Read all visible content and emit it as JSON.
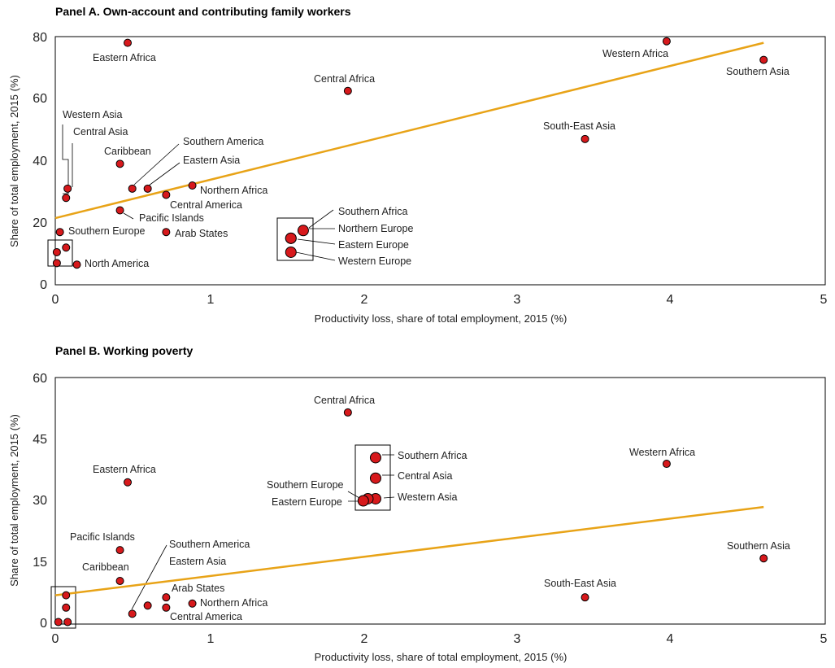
{
  "chart_data": [
    {
      "type": "scatter",
      "title": "Panel A.  Own-account and contributing family workers",
      "xlabel": "Productivity loss, share of total employment, 2015 (%)",
      "ylabel": "Share of total employment, 2015 (%)",
      "xlim": [
        0,
        5
      ],
      "ylim": [
        0,
        80
      ],
      "xticks": [
        0,
        1,
        2,
        3,
        4,
        5
      ],
      "yticks": [
        0,
        20,
        40,
        60,
        80
      ],
      "trend_line": {
        "x": [
          0,
          4.6
        ],
        "y": [
          21.5,
          78.0
        ],
        "color": "#E8A317"
      },
      "points": [
        {
          "label": "Eastern Africa",
          "x": 0.47,
          "y": 78.0
        },
        {
          "label": "Western Africa",
          "x": 3.97,
          "y": 78.5
        },
        {
          "label": "Southern Asia",
          "x": 4.6,
          "y": 72.5
        },
        {
          "label": "Central Africa",
          "x": 1.9,
          "y": 62.5
        },
        {
          "label": "South-East Asia",
          "x": 3.44,
          "y": 47.0
        },
        {
          "label": "Western Asia",
          "x": 0.08,
          "y": 31.0
        },
        {
          "label": "Central Asia",
          "x": 0.07,
          "y": 28.0
        },
        {
          "label": "Caribbean",
          "x": 0.42,
          "y": 39.0
        },
        {
          "label": "Southern America",
          "x": 0.5,
          "y": 31.0
        },
        {
          "label": "Eastern Asia",
          "x": 0.6,
          "y": 31.0
        },
        {
          "label": "Northern Africa",
          "x": 0.89,
          "y": 32.0
        },
        {
          "label": "Central America",
          "x": 0.72,
          "y": 29.0
        },
        {
          "label": "Pacific Islands",
          "x": 0.42,
          "y": 24.0
        },
        {
          "label": "Arab States",
          "x": 0.72,
          "y": 17.0
        },
        {
          "label": "Southern Europe",
          "x": 0.03,
          "y": 17.0
        },
        {
          "label": "North America",
          "x": 0.14,
          "y": 6.5
        },
        {
          "label": "",
          "x": 0.07,
          "y": 12.0
        },
        {
          "label": "",
          "x": 0.01,
          "y": 10.5
        },
        {
          "label": "",
          "x": 0.01,
          "y": 7.0
        },
        {
          "label": "Southern Africa",
          "x": 1.61,
          "y": 17.5
        },
        {
          "label": "Northern Europe",
          "x": 1.53,
          "y": 15.0
        },
        {
          "label": "Eastern Europe",
          "x": 1.53,
          "y": 15.0
        },
        {
          "label": "Western Europe",
          "x": 1.53,
          "y": 10.5
        }
      ]
    },
    {
      "type": "scatter",
      "title": "Panel B.  Working poverty",
      "xlabel": "Productivity loss, share of total employment, 2015 (%)",
      "ylabel": "Share of total employment, 2015 (%)",
      "xlim": [
        0,
        5
      ],
      "ylim": [
        0,
        60
      ],
      "xticks": [
        0,
        1,
        2,
        3,
        4,
        5
      ],
      "yticks": [
        0,
        15,
        30,
        45,
        60
      ],
      "trend_line": {
        "x": [
          0,
          4.6
        ],
        "y": [
          7.0,
          28.5
        ],
        "color": "#E8A317"
      },
      "points": [
        {
          "label": "Central Africa",
          "x": 1.9,
          "y": 51.5
        },
        {
          "label": "Southern Africa",
          "x": 2.08,
          "y": 40.5
        },
        {
          "label": "Central Asia",
          "x": 2.08,
          "y": 35.5
        },
        {
          "label": "Western Asia",
          "x": 2.08,
          "y": 30.5
        },
        {
          "label": "Southern Europe",
          "x": 2.03,
          "y": 30.5
        },
        {
          "label": "Eastern Europe",
          "x": 2.0,
          "y": 30.0
        },
        {
          "label": "Western Africa",
          "x": 3.97,
          "y": 39.0
        },
        {
          "label": "Eastern Africa",
          "x": 0.47,
          "y": 34.5
        },
        {
          "label": "Pacific Islands",
          "x": 0.42,
          "y": 18.0
        },
        {
          "label": "Caribbean",
          "x": 0.42,
          "y": 10.5
        },
        {
          "label": "Southern America",
          "x": 0.5,
          "y": 2.5
        },
        {
          "label": "Eastern Asia",
          "x": 0.6,
          "y": 4.5
        },
        {
          "label": "Arab States",
          "x": 0.72,
          "y": 6.5
        },
        {
          "label": "Central America",
          "x": 0.72,
          "y": 4.0
        },
        {
          "label": "Northern Africa",
          "x": 0.89,
          "y": 5.0
        },
        {
          "label": "South-East Asia",
          "x": 3.44,
          "y": 6.5
        },
        {
          "label": "Southern Asia",
          "x": 4.6,
          "y": 16.0
        },
        {
          "label": "",
          "x": 0.07,
          "y": 7.0
        },
        {
          "label": "",
          "x": 0.07,
          "y": 4.0
        },
        {
          "label": "",
          "x": 0.02,
          "y": 0.5
        },
        {
          "label": "",
          "x": 0.08,
          "y": 0.5
        }
      ]
    }
  ]
}
